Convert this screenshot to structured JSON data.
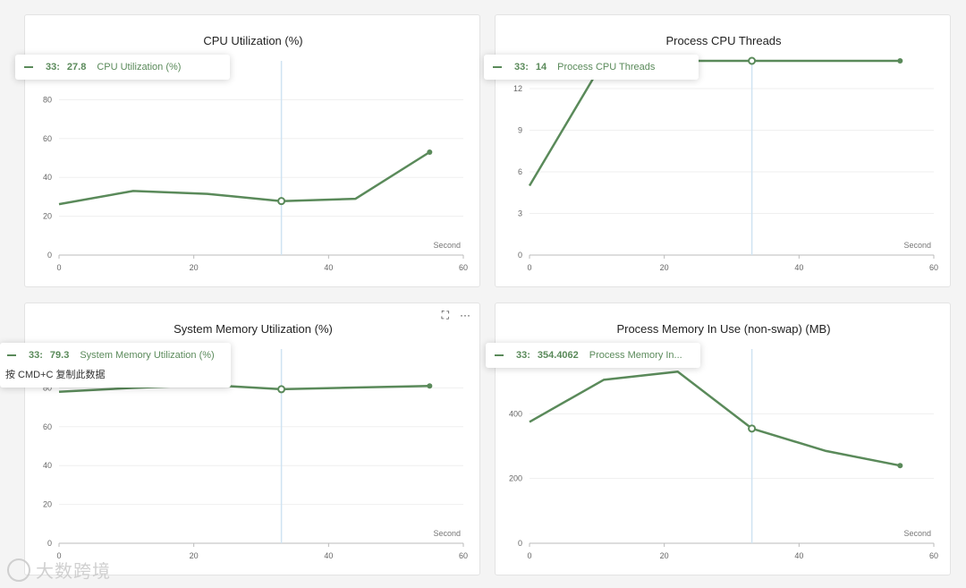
{
  "accent_color": "#5a8a5a",
  "crosshair_color": "#cfe3f2",
  "panel_tools": {
    "expand_icon": "fullscreen-icon",
    "more_label": "···"
  },
  "watermark": {
    "text": "大数跨境"
  },
  "chart_data": [
    {
      "type": "line",
      "title": "CPU Utilization (%)",
      "xname": "Second",
      "xlim": [
        0,
        60
      ],
      "ylim": [
        0,
        100
      ],
      "xticks": [
        0,
        20,
        40,
        60
      ],
      "yticks": [
        0,
        20,
        40,
        60,
        80
      ],
      "x": [
        0,
        11,
        22,
        33,
        44,
        55
      ],
      "series": [
        {
          "name": "CPU Utilization (%)",
          "values": [
            26.2,
            33,
            31.5,
            27.8,
            29,
            53
          ]
        }
      ],
      "highlight_index": 3,
      "tooltip": {
        "x": "33:",
        "y": "27.8",
        "name": "CPU Utilization (%)"
      }
    },
    {
      "type": "line",
      "title": "Process CPU Threads",
      "xname": "Second",
      "xlim": [
        0,
        60
      ],
      "ylim": [
        0,
        14
      ],
      "xticks": [
        0,
        20,
        40,
        60
      ],
      "yticks": [
        0,
        3,
        6,
        9,
        12
      ],
      "x": [
        0,
        11,
        22,
        33,
        44,
        55
      ],
      "series": [
        {
          "name": "Process CPU Threads",
          "values": [
            5,
            14,
            14,
            14,
            14,
            14
          ]
        }
      ],
      "highlight_index": 3,
      "tooltip": {
        "x": "33:",
        "y": "14",
        "name": "Process CPU Threads"
      }
    },
    {
      "type": "line",
      "title": "System Memory Utilization (%)",
      "xname": "Second",
      "xlim": [
        0,
        60
      ],
      "ylim": [
        0,
        100
      ],
      "xticks": [
        0,
        20,
        40,
        60
      ],
      "yticks": [
        0,
        20,
        40,
        60,
        80
      ],
      "x": [
        0,
        11,
        22,
        33,
        44,
        55
      ],
      "series": [
        {
          "name": "System Memory Utilization (%)",
          "values": [
            78,
            80,
            81.5,
            79.3,
            80.2,
            81
          ]
        }
      ],
      "highlight_index": 3,
      "tooltip": {
        "x": "33:",
        "y": "79.3",
        "name": "System Memory Utilization (%)",
        "hint": "按 CMD+C 复制此数据"
      }
    },
    {
      "type": "line",
      "title": "Process Memory In Use (non-swap) (MB)",
      "xname": "Second",
      "xlim": [
        0,
        60
      ],
      "ylim": [
        0,
        600
      ],
      "xticks": [
        0,
        20,
        40,
        60
      ],
      "yticks": [
        0,
        200,
        400
      ],
      "x": [
        0,
        11,
        22,
        33,
        44,
        55
      ],
      "series": [
        {
          "name": "Process Memory In Use (non-swap) (MB)",
          "values": [
            375,
            505,
            530,
            354.4062,
            285,
            240
          ]
        }
      ],
      "highlight_index": 3,
      "tooltip": {
        "x": "33:",
        "y": "354.4062",
        "name": "Process Memory In Use (non-swap) (MB)",
        "name_display": "Process Memory In..."
      }
    }
  ]
}
